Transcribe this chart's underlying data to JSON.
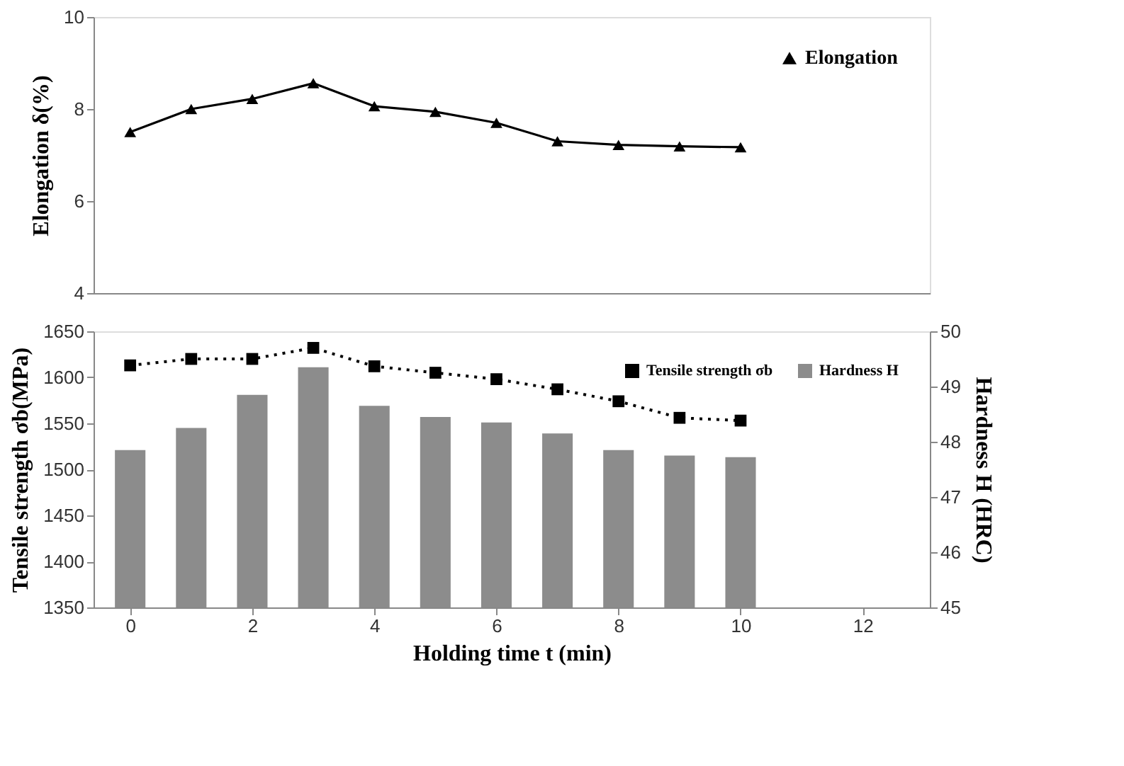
{
  "chart_data": [
    {
      "type": "line",
      "x": [
        0,
        1,
        2,
        3,
        4,
        5,
        6,
        7,
        8,
        9,
        10
      ],
      "series": [
        {
          "name": "Elongation",
          "color": "#000000",
          "marker": "triangle",
          "line_style": "solid",
          "values": [
            7.5,
            8.0,
            8.22,
            8.56,
            8.06,
            7.94,
            7.7,
            7.3,
            7.22,
            7.19,
            7.17
          ]
        }
      ],
      "xlim": [
        -0.6,
        13.1
      ],
      "ylim": [
        4,
        10
      ],
      "yticks": [
        4,
        6,
        8,
        10
      ],
      "ylabel": "Elongation δ(%)",
      "legend": "top right",
      "tick_labels": "y",
      "grid": false
    },
    {
      "type": "bar",
      "x": [
        0,
        1,
        2,
        3,
        4,
        5,
        6,
        7,
        8,
        9,
        10
      ],
      "series": [
        {
          "name": "Hardness H",
          "type": "bar",
          "axis": "y2",
          "color": "#8c8c8c",
          "values": [
            47.85,
            48.25,
            48.85,
            49.35,
            48.65,
            48.45,
            48.35,
            48.15,
            47.85,
            47.75,
            47.72
          ]
        },
        {
          "name": "Tensile strength σb",
          "type": "line",
          "axis": "y",
          "color": "#000000",
          "marker": "square",
          "line_style": "dotted",
          "values": [
            1613,
            1620,
            1620,
            1632,
            1612,
            1605,
            1598,
            1587,
            1574,
            1556,
            1553
          ]
        }
      ],
      "xlim": [
        -0.6,
        13.1
      ],
      "xticks": [
        0,
        2,
        4,
        6,
        8,
        10,
        12
      ],
      "ylim": [
        1350,
        1650
      ],
      "yticks": [
        1350,
        1400,
        1450,
        1500,
        1550,
        1600,
        1650
      ],
      "y2lim": [
        45,
        50
      ],
      "y2ticks": [
        45,
        46,
        47,
        48,
        49,
        50
      ],
      "xlabel": "Holding time t (min)",
      "ylabel": "Tensile strength σb(MPa)",
      "y2label": "Hardness H  (HRC)",
      "legend": "top right",
      "grid": false
    }
  ]
}
